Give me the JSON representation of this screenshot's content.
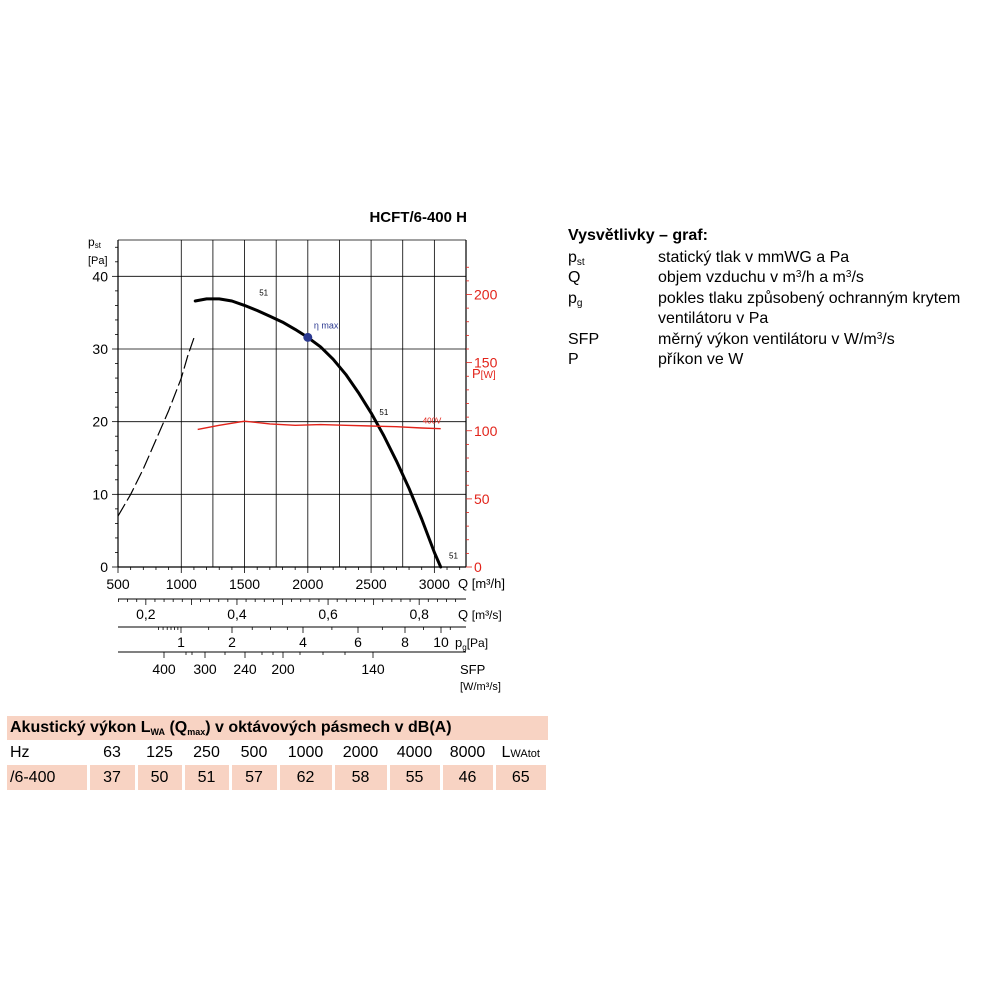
{
  "chart_data": {
    "type": "line",
    "title": "HCFT/6-400 H",
    "y_label_main": "p",
    "y_label_sub": "st",
    "y_unit": "[Pa]",
    "y_ticks": [
      0,
      10,
      20,
      30,
      40
    ],
    "ylim": [
      0,
      45
    ],
    "x_ticks": [
      500,
      1000,
      1500,
      2000,
      2500,
      3000
    ],
    "xlim": [
      500,
      3250
    ],
    "x_label": "Q [m³/h]",
    "y2_label": "P",
    "y2_unit": "[W]",
    "y2_ticks": [
      0,
      50,
      100,
      150,
      200
    ],
    "y2lim": [
      0,
      240
    ],
    "grid": true,
    "series": [
      {
        "name": "",
        "style": "dashed",
        "color": "#000000",
        "axis": "pst",
        "x": [
          500,
          600,
          700,
          800,
          900,
          1000,
          1050,
          1100
        ],
        "y": [
          7,
          10,
          13.5,
          17.5,
          21.5,
          26,
          29,
          31.5
        ]
      },
      {
        "name": "",
        "style": "solid-bold",
        "color": "#000000",
        "axis": "pst",
        "x": [
          1110,
          1200,
          1300,
          1400,
          1500,
          1600,
          1700,
          1800,
          1900,
          2000,
          2100,
          2200,
          2300,
          2400,
          2500,
          2600,
          2700,
          2800,
          2900,
          3000,
          3050
        ],
        "y": [
          36.6,
          36.9,
          36.9,
          36.6,
          36,
          35.3,
          34.5,
          33.7,
          32.7,
          31.6,
          30.3,
          28.6,
          26.5,
          24,
          21.2,
          18.1,
          14.6,
          10.8,
          6.6,
          2,
          0
        ]
      },
      {
        "name": "400V",
        "style": "solid",
        "color": "#e2231a",
        "axis": "P",
        "x": [
          1130,
          1300,
          1500,
          1700,
          1900,
          2100,
          2300,
          2500,
          2700,
          2900,
          3050
        ],
        "y": [
          101,
          104,
          107,
          105,
          104,
          104.5,
          104,
          103.5,
          103,
          102,
          101.5
        ]
      }
    ],
    "point_labels": [
      {
        "text": "51",
        "x": 1600,
        "y": 37.2
      },
      {
        "text": "51",
        "x": 2550,
        "y": 20.8
      },
      {
        "text": "51",
        "x": 3100,
        "y": 1
      }
    ],
    "eta_max": {
      "label": "η max",
      "x": 2000,
      "y": 31.6
    },
    "secondary_axes": [
      {
        "name": "Q [m³/s]",
        "label_main": "Q",
        "label_unit": "[m³/s]",
        "ticks": [
          "0,2",
          "0,4",
          "0,6",
          "0,8"
        ],
        "tick_values": [
          0.2,
          0.4,
          0.6,
          0.8
        ]
      },
      {
        "name": "pg [Pa]",
        "label_main": "p",
        "label_sub": "g",
        "label_unit": "[Pa]",
        "ticks": [
          "1",
          "2",
          "4",
          "6",
          "8",
          "10"
        ],
        "tick_values": [
          1,
          2,
          4,
          6,
          8,
          10
        ]
      },
      {
        "name": "SFP [W/m³/s]",
        "label_main": "SFP",
        "label_unit": "[W/m³/s]",
        "ticks": [
          "400",
          "300",
          "240",
          "200",
          "140"
        ],
        "tick_values": [
          400,
          300,
          240,
          200,
          140
        ]
      }
    ]
  },
  "legend": {
    "title": "Vysvětlivky – graf:",
    "items": [
      {
        "sym": "p",
        "sub": "st",
        "desc": "statický tlak v mmWG a Pa"
      },
      {
        "sym": "Q",
        "sub": "",
        "desc_pre": "objem vzduchu v m",
        "desc_sup1": "3",
        "desc_mid": "/h a m",
        "desc_sup2": "3",
        "desc_post": "/s"
      },
      {
        "sym": "p",
        "sub": "g",
        "desc": "pokles tlaku způsobený ochranným krytem",
        "desc2": "ventilátoru v Pa"
      },
      {
        "sym": "SFP",
        "sub": "",
        "desc_pre": "měrný výkon ventilátoru v W/m",
        "desc_sup1": "3",
        "desc_post": "/s"
      },
      {
        "sym": "P",
        "sub": "",
        "desc": "příkon ve W"
      }
    ]
  },
  "acoustic": {
    "title_pre": "Akustický výkon L",
    "title_sub1": "WA",
    "title_mid": " (Q",
    "title_sub2": "max",
    "title_post": ") v oktávových pásmech v dB(A)",
    "hz_label": "Hz",
    "bands": [
      "63",
      "125",
      "250",
      "500",
      "1000",
      "2000",
      "4000",
      "8000"
    ],
    "total_label_main": "L",
    "total_label_sub": "WAtot",
    "row_label": "/6-400",
    "values": [
      "37",
      "50",
      "51",
      "57",
      "62",
      "58",
      "55",
      "46"
    ],
    "total": "65"
  }
}
